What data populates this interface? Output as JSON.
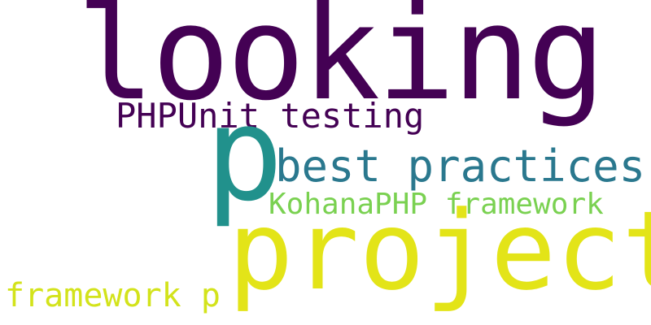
{
  "words": [
    {
      "text": "looking",
      "color": "#440154"
    },
    {
      "text": "PHPUnit testing",
      "color": "#440154"
    },
    {
      "text": "p",
      "color": "#21918c"
    },
    {
      "text": "best practices",
      "color": "#2a788e"
    },
    {
      "text": "KohanaPHP framework",
      "color": "#7ad151"
    },
    {
      "text": "project",
      "color": "#e3e418"
    },
    {
      "text": "framework p",
      "color": "#d3e31b"
    }
  ]
}
